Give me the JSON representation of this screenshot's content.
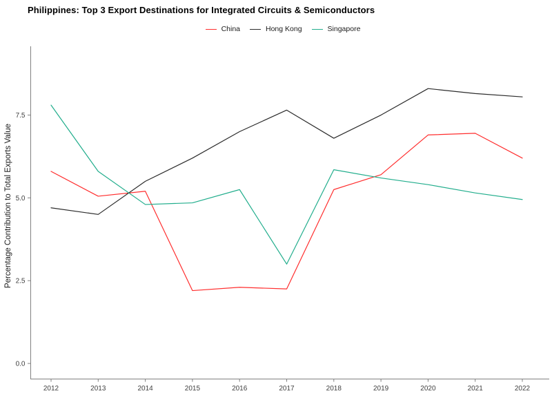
{
  "chart_data": {
    "type": "line",
    "title": "Philippines: Top 3 Export Destinations for Integrated Circuits & Semiconductors",
    "ylabel": "Percentage Contribution to Total Exports Value",
    "xlabel": "",
    "x": [
      2012,
      2013,
      2014,
      2015,
      2016,
      2017,
      2018,
      2019,
      2020,
      2021,
      2022
    ],
    "xtick_labels": [
      "2012",
      "2013",
      "2014",
      "2015",
      "2016",
      "2017",
      "2018",
      "2019",
      "2020",
      "2021",
      "2022"
    ],
    "yticks": [
      0.0,
      2.5,
      5.0,
      7.5
    ],
    "ytick_labels": [
      "0.0",
      "2.5",
      "5.0",
      "7.5"
    ],
    "ylim": [
      0,
      9.6
    ],
    "grid": false,
    "legend_position": "top-center",
    "series": [
      {
        "name": "China",
        "color": "#FF2D2D",
        "values": [
          5.8,
          5.05,
          5.2,
          2.2,
          2.3,
          2.25,
          5.25,
          5.7,
          6.9,
          6.95,
          6.2
        ]
      },
      {
        "name": "Hong Kong",
        "color": "#2B2B2B",
        "values": [
          4.7,
          4.5,
          5.5,
          6.2,
          7.0,
          7.65,
          6.8,
          7.5,
          8.3,
          8.15,
          8.05
        ]
      },
      {
        "name": "Singapore",
        "color": "#21AD8C",
        "values": [
          7.8,
          5.8,
          4.8,
          4.85,
          5.25,
          3.0,
          5.85,
          5.6,
          5.4,
          5.15,
          4.95
        ]
      }
    ],
    "axis_color": "#808080",
    "tick_label_color": "#404040"
  }
}
